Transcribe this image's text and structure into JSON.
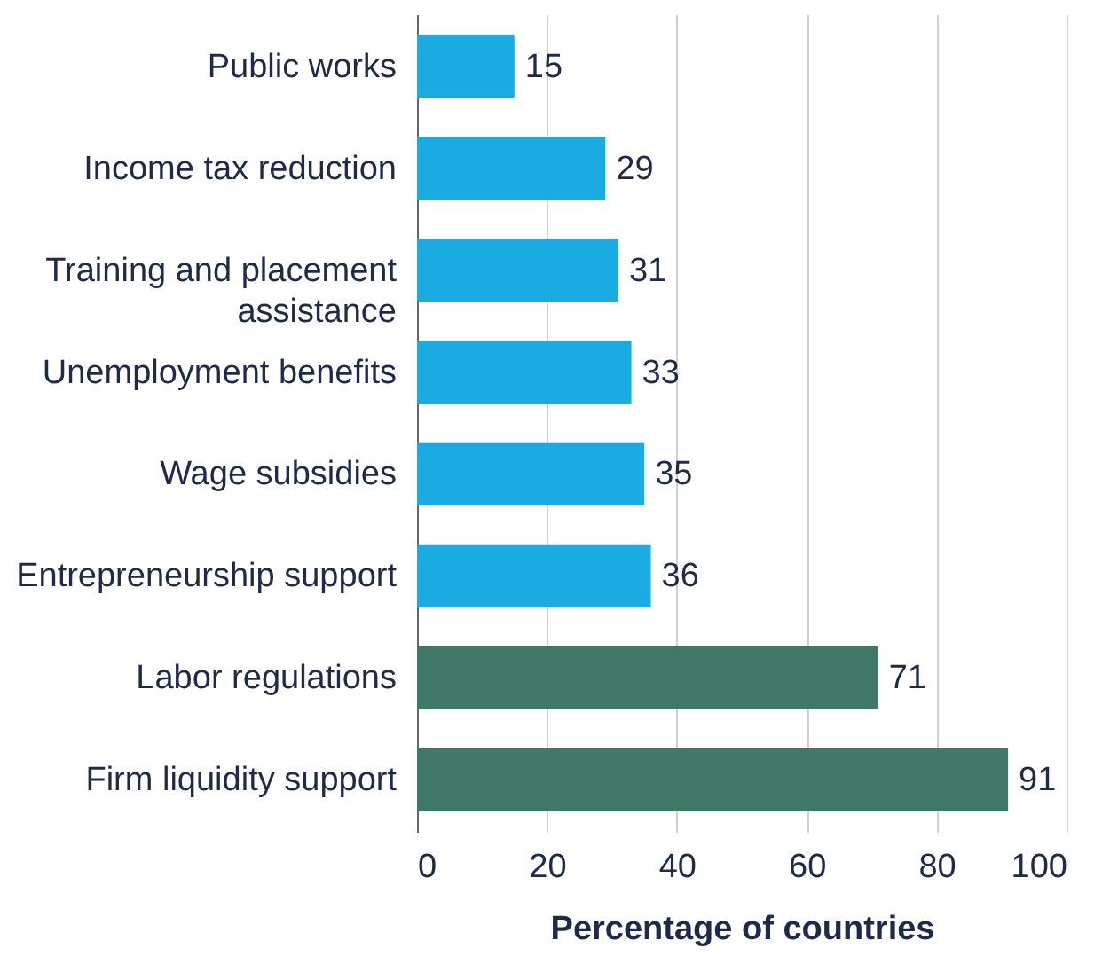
{
  "chart_data": {
    "type": "bar",
    "orientation": "horizontal",
    "xlabel": "Percentage of countries",
    "categories": [
      "Public works",
      "Income tax reduction",
      "Training and placement assistance",
      "Unemployment benefits",
      "Wage subsidies",
      "Entrepreneurship support",
      "Labor regulations",
      "Firm liquidity support"
    ],
    "values": [
      15,
      29,
      31,
      33,
      35,
      36,
      71,
      91
    ],
    "colors": [
      "#1aabe3",
      "#1aabe3",
      "#1aabe3",
      "#1aabe3",
      "#1aabe3",
      "#1aabe3",
      "#3f7866",
      "#3f7866"
    ],
    "xlim": [
      0,
      100
    ],
    "xticks": [
      0,
      20,
      40,
      60,
      80,
      100
    ],
    "grid": "x",
    "data_labels": true
  }
}
